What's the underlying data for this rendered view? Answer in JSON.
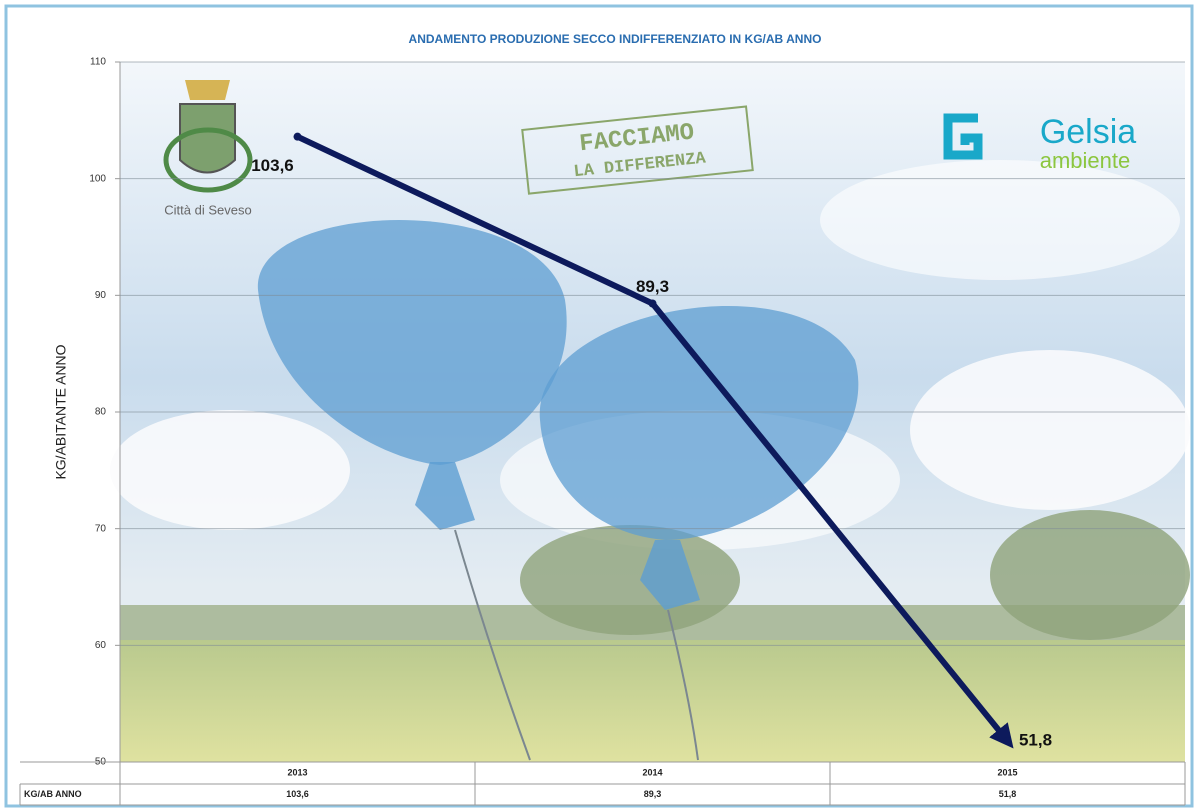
{
  "chart_data": {
    "type": "line",
    "title": "ANDAMENTO PRODUZIONE SECCO INDIFFERENZIATO IN KG/AB ANNO",
    "ylabel": "KG/ABITANTE ANNO",
    "categories": [
      "2013",
      "2014",
      "2015"
    ],
    "series": [
      {
        "name": "KG/AB ANNO",
        "color": "#0d1a5c",
        "values": [
          103.6,
          89.3,
          51.8
        ],
        "value_labels": [
          "103,6",
          "89,3",
          "51,8"
        ]
      }
    ],
    "ylim": [
      50,
      110
    ],
    "yticks": [
      50,
      60,
      70,
      80,
      90,
      100,
      110
    ],
    "grid": true,
    "logos": {
      "city": "Città di Seveso",
      "campaign": [
        "FACCIAMO",
        "LA DIFFERENZA"
      ],
      "brand": "Gelsia",
      "brand_sub": "ambiente"
    }
  }
}
